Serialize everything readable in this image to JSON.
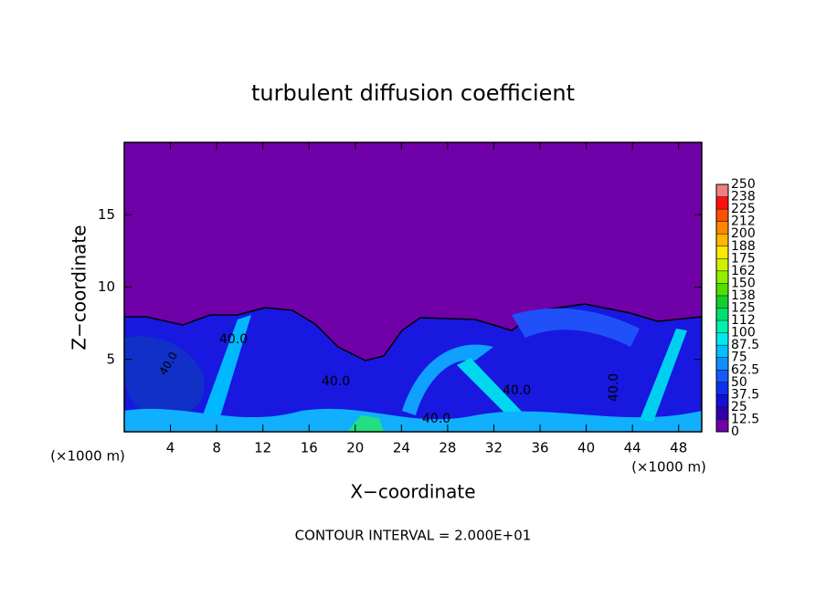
{
  "chart_data": {
    "type": "contour",
    "title": "turbulent diffusion coefficient",
    "x_label": "X−coordinate",
    "y_label": "Z−coordinate",
    "x_unit": "(×1000 m)",
    "x_unit_right": "(×1000 m)",
    "footnote": "CONTOUR INTERVAL = 2.000E+01",
    "contour_labels": [
      "40.0",
      "40.0",
      "40.0",
      "40.0",
      "40.0",
      "40.0"
    ],
    "xlim": [
      0,
      50
    ],
    "xticks": [
      4,
      8,
      12,
      16,
      20,
      24,
      28,
      32,
      36,
      40,
      44,
      48
    ],
    "ylim": [
      0,
      20
    ],
    "yticks": [
      5,
      10,
      15
    ],
    "colorbar": {
      "levels": [
        0,
        12.5,
        25,
        37.5,
        50,
        62.5,
        75,
        87.5,
        100,
        112,
        125,
        138,
        150,
        162,
        175,
        188,
        200,
        212,
        225,
        238,
        250
      ],
      "colors": [
        "#7000a8",
        "#3000b0",
        "#1010d8",
        "#1030f0",
        "#1858ff",
        "#1090ff",
        "#00c0ff",
        "#00e8f0",
        "#00f0b0",
        "#00e070",
        "#10d030",
        "#50e000",
        "#90f000",
        "#d0f000",
        "#ffe800",
        "#ffb800",
        "#ff8800",
        "#ff5000",
        "#ff1010",
        "#f08080"
      ]
    }
  }
}
